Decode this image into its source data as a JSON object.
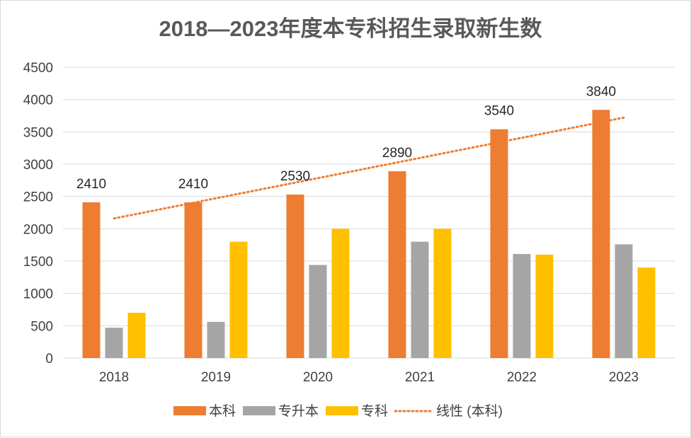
{
  "chart_data": {
    "type": "bar",
    "title": "2018—2023年度本专科招生录取新生数",
    "categories": [
      "2018",
      "2019",
      "2020",
      "2021",
      "2022",
      "2023"
    ],
    "series": [
      {
        "name": "本科",
        "color": "#ED7D31",
        "values": [
          2410,
          2410,
          2530,
          2890,
          3540,
          3840
        ],
        "data_labels": true
      },
      {
        "name": "专升本",
        "color": "#A5A5A5",
        "values": [
          470,
          560,
          1440,
          1800,
          1610,
          1760
        ],
        "data_labels": false
      },
      {
        "name": "专科",
        "color": "#FFC000",
        "values": [
          700,
          1800,
          2000,
          2000,
          1600,
          1400
        ],
        "data_labels": false
      }
    ],
    "trendline": {
      "name": "线性 (本科)",
      "color": "#ED7D31",
      "series": "本科",
      "style": "dotted",
      "start": 2160,
      "end": 3720
    },
    "ylim": [
      0,
      4500
    ],
    "yticks": [
      0,
      500,
      1000,
      1500,
      2000,
      2500,
      3000,
      3500,
      4000,
      4500
    ],
    "xlabel": "",
    "ylabel": "",
    "grid": true,
    "legend_position": "bottom"
  }
}
